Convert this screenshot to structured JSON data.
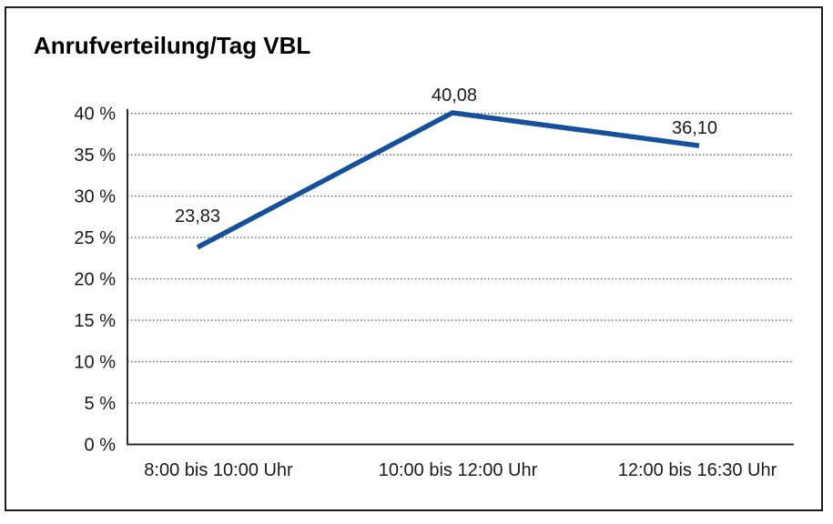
{
  "window": {
    "background_color": "#ffffff",
    "frame_border_color": "#1c1c1c"
  },
  "chart_data": {
    "type": "line",
    "title": "Anrufverteilung/Tag VBL",
    "categories": [
      "8:00 bis 10:00 Uhr",
      "10:00 bis 12:00 Uhr",
      "12:00 bis 16:30 Uhr"
    ],
    "values": [
      23.83,
      40.08,
      36.1
    ],
    "point_labels": [
      "23,83",
      "40,08",
      "36,10"
    ],
    "xlabel": "",
    "ylabel": "",
    "ylim": [
      0,
      40
    ],
    "ytick_step": 5,
    "ytick_labels": [
      "0 %",
      "5 %",
      "10 %",
      "15 %",
      "20 %",
      "25 %",
      "30 %",
      "35 %",
      "40 %"
    ],
    "grid": "horizontal-dotted",
    "legend": "none",
    "line_color": "#14509B",
    "gridline_color": "#5a5a5a",
    "axis_color": "#2b2b2b",
    "text_color": "#1a1a1a"
  }
}
